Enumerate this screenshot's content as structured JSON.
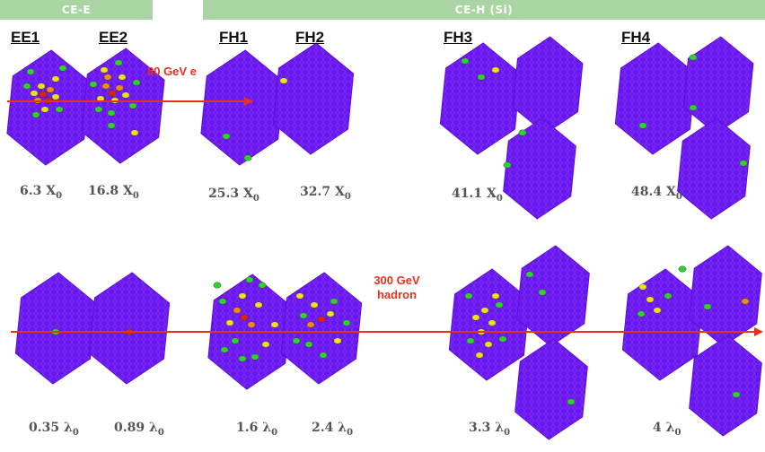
{
  "banners": {
    "ce_e": "CE-E",
    "ce_h": "CE-H (Si)"
  },
  "layers": {
    "ee1": "EE1",
    "ee2": "EE2",
    "fh1": "FH1",
    "fh2": "FH2",
    "fh3": "FH3",
    "fh4": "FH4"
  },
  "beams": {
    "electron": "80 GeV e",
    "hadron_line1": "300 GeV",
    "hadron_line2": "hadron"
  },
  "thickness_x0": [
    {
      "value": "6.3",
      "symbol": "X",
      "sub": "0"
    },
    {
      "value": "16.8",
      "symbol": "X",
      "sub": "0"
    },
    {
      "value": "25.3",
      "symbol": "X",
      "sub": "0"
    },
    {
      "value": "32.7",
      "symbol": "X",
      "sub": "0"
    },
    {
      "value": "41.1",
      "symbol": "X",
      "sub": "0"
    },
    {
      "value": "48.4",
      "symbol": "X",
      "sub": "0"
    }
  ],
  "thickness_lambda": [
    {
      "value": "0.35",
      "symbol": "λ",
      "sub": "0"
    },
    {
      "value": "0.89",
      "symbol": "λ",
      "sub": "0"
    },
    {
      "value": "1.6",
      "symbol": "λ",
      "sub": "0"
    },
    {
      "value": "2.4",
      "symbol": "λ",
      "sub": "0"
    },
    {
      "value": "3.3",
      "symbol": "λ",
      "sub": "0"
    },
    {
      "value": "4",
      "symbol": "λ",
      "sub": "0"
    }
  ],
  "colors": {
    "sensor": "#6a16f0",
    "beam": "#e8311c",
    "banner": "#a8d5a2",
    "hit_red": "#e02010",
    "hit_orange": "#f08a10",
    "hit_yellow": "#e8e020",
    "hit_green": "#30d030"
  }
}
